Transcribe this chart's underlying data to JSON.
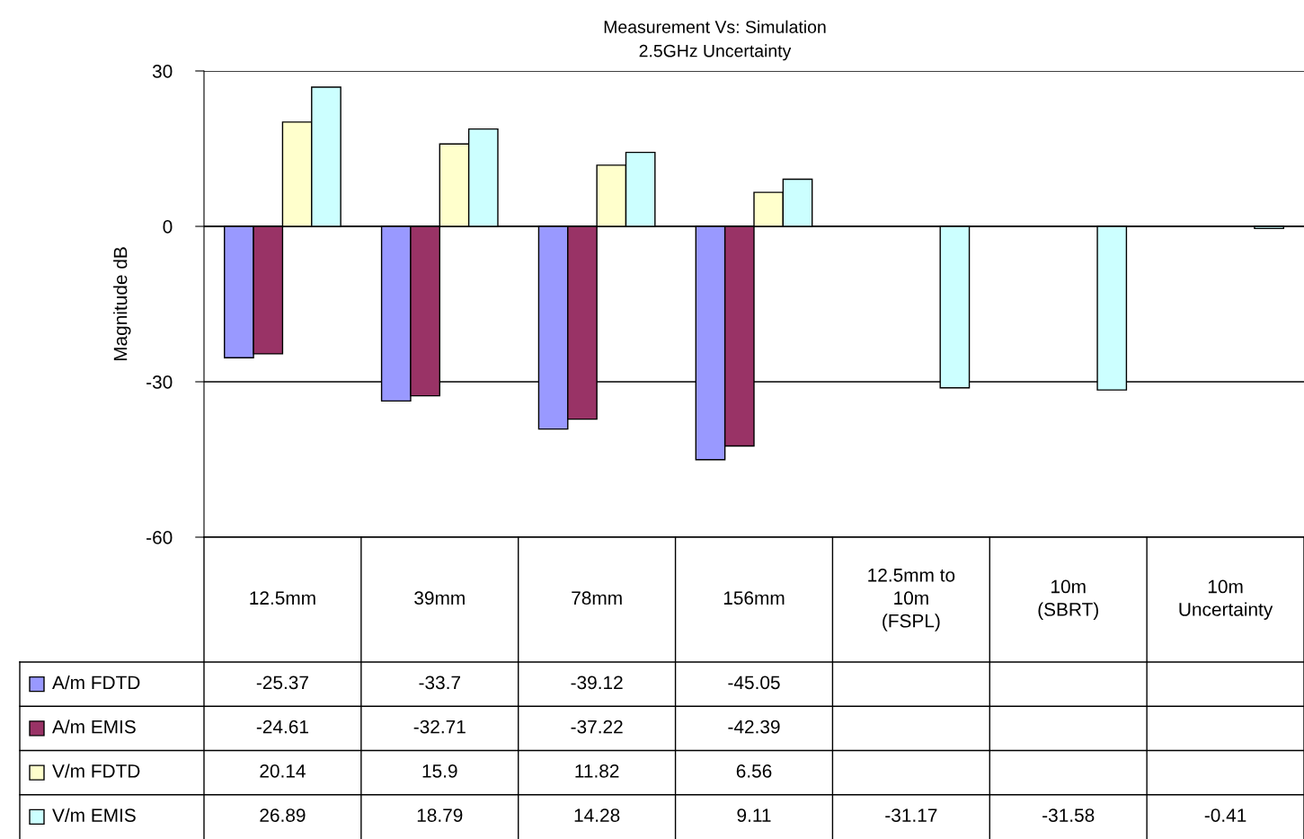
{
  "chart_data": {
    "type": "bar",
    "title": "Measurement Vs: Simulation\n2.5GHz Uncertainty",
    "ylabel": "Magnitude dB",
    "categories": [
      "12.5mm",
      "39mm",
      "78mm",
      "156mm",
      "12.5mm to\n10m\n(FSPL)",
      "10m\n(SBRT)",
      "10m\nUncertainty"
    ],
    "series": [
      {
        "name": "A/m FDTD",
        "color": "#9999ff",
        "values": [
          -25.37,
          -33.7,
          -39.12,
          -45.05,
          null,
          null,
          null
        ]
      },
      {
        "name": "A/m EMIS",
        "color": "#993366",
        "values": [
          -24.61,
          -32.71,
          -37.22,
          -42.39,
          null,
          null,
          null
        ]
      },
      {
        "name": "V/m FDTD",
        "color": "#ffffcc",
        "values": [
          20.14,
          15.9,
          11.82,
          6.56,
          null,
          null,
          null
        ]
      },
      {
        "name": "V/m EMIS",
        "color": "#ccffff",
        "values": [
          26.89,
          18.79,
          14.28,
          9.11,
          -31.17,
          -31.58,
          -0.41
        ]
      }
    ],
    "ylim": [
      -60,
      30
    ],
    "yticks": [
      -60,
      -30,
      0,
      30
    ],
    "grid": "y",
    "data_labels": true,
    "legend": "bottom left"
  }
}
